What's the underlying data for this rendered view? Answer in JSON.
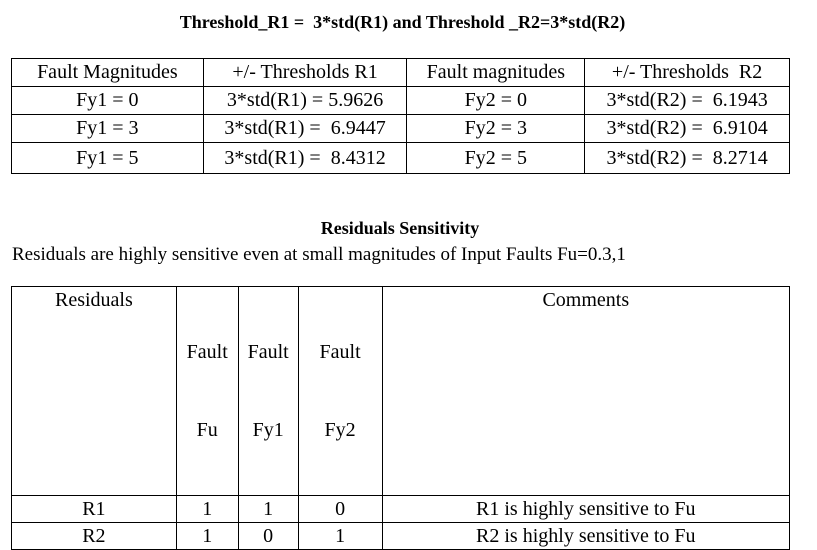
{
  "title": "Threshold_R1 =  3*std(R1) and Threshold _R2=3*std(R2)",
  "thresholds_table": {
    "headers": [
      "Fault Magnitudes",
      "+/- Thresholds R1",
      "Fault magnitudes",
      "+/- Thresholds  R2"
    ],
    "rows": [
      [
        "Fy1 = 0",
        "3*std(R1) = 5.9626",
        "Fy2 = 0",
        "3*std(R2) =  6.1943"
      ],
      [
        "Fy1 = 3",
        "3*std(R1) =  6.9447",
        "Fy2 = 3",
        "3*std(R2) =  6.9104"
      ],
      [
        "Fy1 = 5",
        "3*std(R1) =  8.4312",
        "Fy2 = 5",
        "3*std(R2) =  8.2714"
      ]
    ]
  },
  "sensitivity_title": "Residuals Sensitivity",
  "sensitivity_text": "Residuals are highly sensitive even at small magnitudes of Input Faults Fu=0.3,1",
  "sensitivity_table": {
    "headers": {
      "residuals": "Residuals",
      "fault_fu": [
        "Fault",
        "Fu"
      ],
      "fault_fy1": [
        "Fault",
        "Fy1"
      ],
      "fault_fy2": [
        "Fault",
        "Fy2"
      ],
      "comments": "Comments"
    },
    "rows": [
      [
        "R1",
        "1",
        "1",
        "0",
        "R1 is highly sensitive to Fu"
      ],
      [
        "R2",
        "1",
        "0",
        "1",
        "R2 is highly sensitive to Fu"
      ]
    ]
  }
}
